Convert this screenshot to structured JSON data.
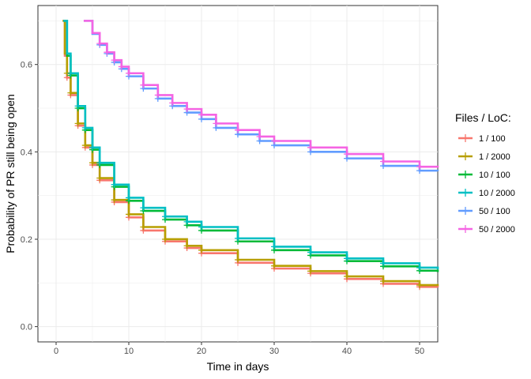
{
  "chart_data": {
    "type": "line",
    "xlabel": "Time in days",
    "ylabel": "Probability of PR still being open",
    "xlim": [
      -2.5,
      52.5
    ],
    "ylim": [
      -0.035,
      0.735
    ],
    "x_ticks": [
      0,
      10,
      20,
      30,
      40,
      50
    ],
    "y_ticks": [
      0.0,
      0.2,
      0.4,
      0.6
    ],
    "x_tick_labels": [
      "0",
      "10",
      "20",
      "30",
      "40",
      "50"
    ],
    "y_tick_labels": [
      "0.0",
      "0.2",
      "0.4",
      "0.6"
    ],
    "grid": true,
    "legend_title": "Files / LoC:",
    "legend_position": "right",
    "series": [
      {
        "name": "1 / 100",
        "color": "#F8766D",
        "x": [
          0.9,
          1.2,
          1.5,
          2,
          3,
          4,
          5,
          6,
          8,
          10,
          12,
          15,
          18,
          20,
          25,
          30,
          35,
          40,
          45,
          50,
          52.5
        ],
        "y": [
          0.7,
          0.62,
          0.57,
          0.53,
          0.46,
          0.41,
          0.37,
          0.335,
          0.285,
          0.25,
          0.22,
          0.195,
          0.18,
          0.168,
          0.146,
          0.133,
          0.122,
          0.109,
          0.098,
          0.091,
          0.09
        ]
      },
      {
        "name": "1 / 2000",
        "color": "#B79F00",
        "x": [
          0.9,
          1.2,
          1.5,
          2,
          3,
          4,
          5,
          6,
          8,
          10,
          12,
          15,
          18,
          20,
          25,
          30,
          35,
          40,
          45,
          50,
          52.5
        ],
        "y": [
          0.7,
          0.625,
          0.58,
          0.535,
          0.465,
          0.415,
          0.375,
          0.34,
          0.29,
          0.257,
          0.228,
          0.2,
          0.185,
          0.175,
          0.153,
          0.139,
          0.127,
          0.115,
          0.104,
          0.095,
          0.093
        ]
      },
      {
        "name": "10 / 100",
        "color": "#00BA38",
        "x": [
          1.0,
          1.5,
          2,
          3,
          4,
          5,
          6,
          8,
          10,
          12,
          15,
          18,
          20,
          25,
          30,
          35,
          40,
          45,
          50,
          52.5
        ],
        "y": [
          0.7,
          0.62,
          0.575,
          0.5,
          0.45,
          0.405,
          0.37,
          0.32,
          0.288,
          0.265,
          0.245,
          0.232,
          0.22,
          0.195,
          0.175,
          0.163,
          0.15,
          0.138,
          0.128,
          0.125
        ]
      },
      {
        "name": "10 / 2000",
        "color": "#00BFC4",
        "x": [
          1.0,
          1.5,
          2,
          3,
          4,
          5,
          6,
          8,
          10,
          12,
          15,
          18,
          20,
          25,
          30,
          35,
          40,
          45,
          50,
          52.5
        ],
        "y": [
          0.7,
          0.625,
          0.58,
          0.505,
          0.455,
          0.41,
          0.375,
          0.325,
          0.295,
          0.272,
          0.252,
          0.24,
          0.228,
          0.202,
          0.183,
          0.17,
          0.156,
          0.145,
          0.135,
          0.131
        ]
      },
      {
        "name": "50 / 100",
        "color": "#619CFF",
        "x": [
          3.8,
          5,
          6,
          7,
          8,
          9,
          10,
          12,
          14,
          16,
          18,
          20,
          22,
          25,
          28,
          30,
          35,
          40,
          45,
          50,
          52.5
        ],
        "y": [
          0.7,
          0.67,
          0.645,
          0.625,
          0.605,
          0.59,
          0.573,
          0.545,
          0.522,
          0.505,
          0.49,
          0.475,
          0.455,
          0.44,
          0.425,
          0.415,
          0.4,
          0.385,
          0.368,
          0.357,
          0.356
        ]
      },
      {
        "name": "50 / 2000",
        "color": "#F564E3",
        "x": [
          3.8,
          5,
          6,
          7,
          8,
          9,
          10,
          12,
          14,
          16,
          18,
          20,
          22,
          25,
          28,
          30,
          35,
          40,
          45,
          50,
          52.5
        ],
        "y": [
          0.7,
          0.672,
          0.648,
          0.628,
          0.61,
          0.595,
          0.58,
          0.553,
          0.53,
          0.512,
          0.498,
          0.485,
          0.465,
          0.45,
          0.435,
          0.425,
          0.41,
          0.395,
          0.378,
          0.366,
          0.364
        ]
      }
    ]
  }
}
